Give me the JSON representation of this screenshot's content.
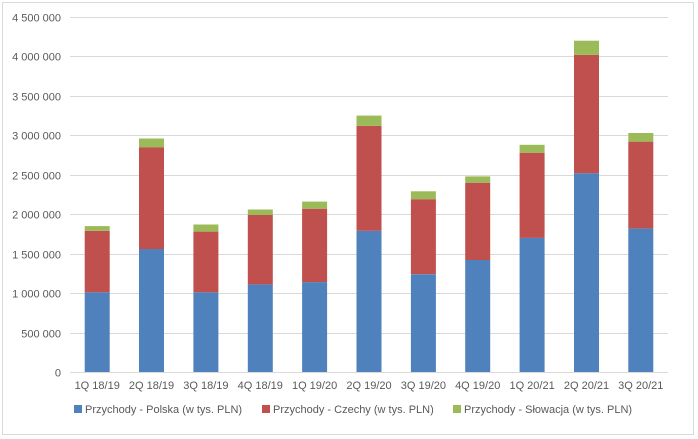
{
  "chart_data": {
    "type": "bar",
    "stacked": true,
    "categories": [
      "1Q 18/19",
      "2Q 18/19",
      "3Q 18/19",
      "4Q 18/19",
      "1Q 19/20",
      "2Q 19/20",
      "3Q 19/20",
      "4Q 19/20",
      "1Q 20/21",
      "2Q 20/21",
      "3Q 20/21"
    ],
    "series": [
      {
        "name": "Przychody - Polska (w tys. PLN)",
        "color": "#4f81bd",
        "values": [
          1010000,
          1560000,
          1010000,
          1110000,
          1140000,
          1790000,
          1240000,
          1420000,
          1700000,
          2520000,
          1820000
        ]
      },
      {
        "name": "Przychody - Czechy (w tys. PLN)",
        "color": "#c0504d",
        "values": [
          780000,
          1290000,
          770000,
          880000,
          930000,
          1330000,
          950000,
          980000,
          1080000,
          1500000,
          1100000
        ]
      },
      {
        "name": "Przychody - Słowacja (w tys. PLN)",
        "color": "#9bbb59",
        "values": [
          60000,
          110000,
          90000,
          70000,
          90000,
          130000,
          100000,
          80000,
          100000,
          180000,
          110000
        ]
      }
    ],
    "ylim": [
      0,
      4500000
    ],
    "yticks": [
      0,
      500000,
      1000000,
      1500000,
      2000000,
      2500000,
      3000000,
      3500000,
      4000000,
      4500000
    ],
    "ytick_labels": [
      "0",
      "500 000",
      "1 000 000",
      "1 500 000",
      "2 000 000",
      "2 500 000",
      "3 000 000",
      "3 500 000",
      "4 000 000",
      "4 500 000"
    ],
    "grid": true,
    "legend_position": "bottom",
    "title": "",
    "xlabel": "",
    "ylabel": ""
  }
}
